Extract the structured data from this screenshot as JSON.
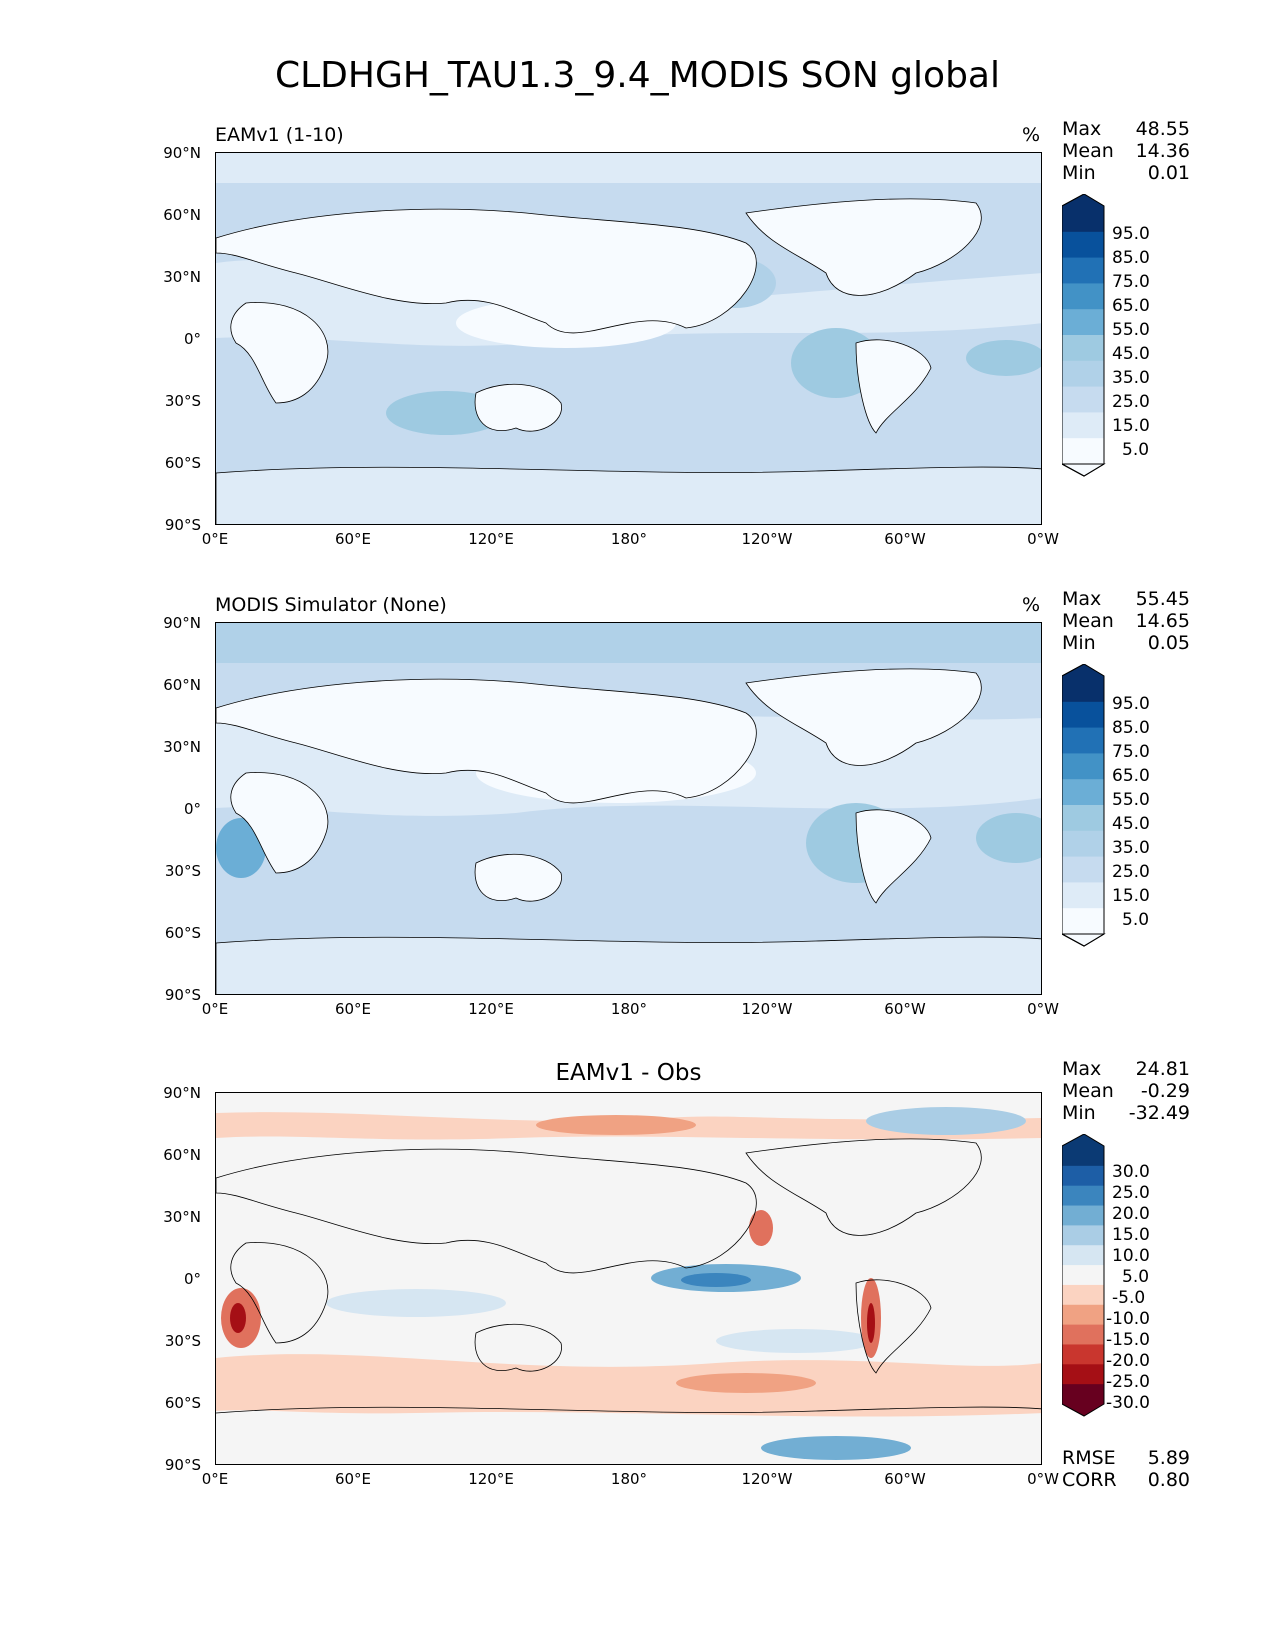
{
  "title": "CLDHGH_TAU1.3_9.4_MODIS SON global",
  "lat_ticks": [
    "90°N",
    "60°N",
    "30°N",
    "0°",
    "30°S",
    "60°S",
    "90°S"
  ],
  "lon_ticks": [
    "0°E",
    "60°E",
    "120°E",
    "180°",
    "120°W",
    "60°W",
    "0°W"
  ],
  "panels": [
    {
      "label": "EAMv1 (1-10)",
      "units": "%",
      "stats": {
        "max_label": "Max",
        "max": "48.55",
        "mean_label": "Mean",
        "mean": "14.36",
        "min_label": "Min",
        "min": "0.01"
      },
      "colorbar": [
        "95.0",
        "85.0",
        "75.0",
        "65.0",
        "55.0",
        "45.0",
        "35.0",
        "25.0",
        "15.0",
        "5.0"
      ]
    },
    {
      "label": "MODIS Simulator (None)",
      "units": "%",
      "stats": {
        "max_label": "Max",
        "max": "55.45",
        "mean_label": "Mean",
        "mean": "14.65",
        "min_label": "Min",
        "min": "0.05"
      },
      "colorbar": [
        "95.0",
        "85.0",
        "75.0",
        "65.0",
        "55.0",
        "45.0",
        "35.0",
        "25.0",
        "15.0",
        "5.0"
      ]
    },
    {
      "title": "EAMv1 - Obs",
      "stats": {
        "max_label": "Max",
        "max": "24.81",
        "mean_label": "Mean",
        "mean": "-0.29",
        "min_label": "Min",
        "min": "-32.49"
      },
      "colorbar": [
        "30.0",
        "25.0",
        "20.0",
        "15.0",
        "10.0",
        "5.0",
        "-5.0",
        "-10.0",
        "-15.0",
        "-20.0",
        "-25.0",
        "-30.0"
      ],
      "rmse_label": "RMSE",
      "rmse": "5.89",
      "corr_label": "CORR",
      "corr": "0.80"
    }
  ],
  "colors": {
    "blues": [
      "#f7fbff",
      "#deebf7",
      "#c6dbef",
      "#b0d1e8",
      "#9ecae1",
      "#6baed6",
      "#4292c6",
      "#2171b5",
      "#08519c",
      "#08306b"
    ],
    "diff": [
      "#67001f",
      "#a50f15",
      "#c9362e",
      "#e0715d",
      "#f0a283",
      "#fbd3c1",
      "#f5f5f5",
      "#d6e6f2",
      "#aacde5",
      "#72aed3",
      "#3b85be",
      "#1d5ea6",
      "#0b3a74"
    ]
  }
}
